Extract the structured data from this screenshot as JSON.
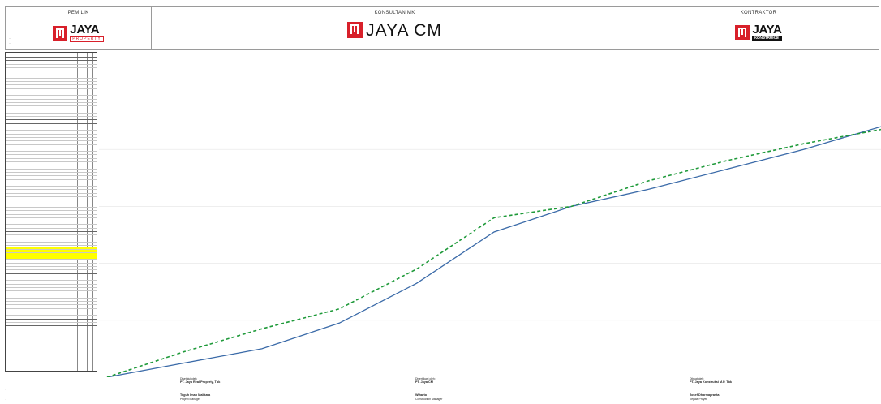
{
  "header": {
    "owner_label": "PEMILIK",
    "consultant_label": "KONSULTAN MK",
    "contractor_label": "KONTRAKTOR",
    "owner_logo": {
      "word": "JAYA",
      "sub": "PROPERTY"
    },
    "consultant_logo": {
      "word": "JAYA CM"
    },
    "contractor_logo": {
      "word": "JAYA",
      "sub": "KONSTRUKSI"
    }
  },
  "colors": {
    "brand_red": "#d8202a",
    "plan_line": "#3a6aa8",
    "actual_line": "#1f9a3a",
    "highlight": "#ffff00"
  },
  "chart_data": {
    "type": "line",
    "title": "",
    "xlabel": "",
    "ylabel": "",
    "grid": true,
    "x": [
      0,
      10,
      20,
      30,
      40,
      50,
      60,
      70,
      80,
      90,
      100
    ],
    "series": [
      {
        "values": [
          0,
          5,
          10,
          19,
          33,
          51,
          60,
          66,
          73,
          80,
          88
        ],
        "style": "solid"
      },
      {
        "values": [
          0,
          9,
          17,
          24,
          38,
          56,
          60,
          69,
          76,
          82,
          87
        ],
        "style": "dashed"
      }
    ]
  },
  "signatures": [
    {
      "role": "Disetujui oleh:",
      "company": "PT. Jaya Real Property, Tbk",
      "name": "Teguh Iman Malikata",
      "title": "Project Manager"
    },
    {
      "role": "Diverifikasi oleh:",
      "company": "PT. Jaya CM",
      "name": "Wiharto",
      "title": "Construction Manager"
    },
    {
      "role": "Dibuat oleh:",
      "company": "PT. Jaya Konstruksi M.P. Tbk",
      "name": "Josef Dharmaprasta",
      "title": "Kepala Proyek"
    }
  ]
}
